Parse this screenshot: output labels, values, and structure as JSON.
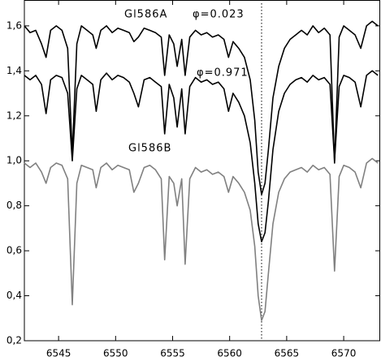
{
  "chart_data": {
    "type": "line",
    "x": [
      6542.0,
      6542.5,
      6543.0,
      6543.5,
      6543.9,
      6544.3,
      6544.8,
      6545.3,
      6545.8,
      6546.2,
      6546.6,
      6547.0,
      6547.5,
      6548.0,
      6548.3,
      6548.7,
      6549.2,
      6549.7,
      6550.2,
      6550.7,
      6551.2,
      6551.6,
      6552.0,
      6552.5,
      6553.0,
      6553.5,
      6554.0,
      6554.3,
      6554.7,
      6555.1,
      6555.4,
      6555.8,
      6556.1,
      6556.5,
      6557.0,
      6557.5,
      6558.0,
      6558.5,
      6559.0,
      6559.5,
      6559.9,
      6560.3,
      6560.8,
      6561.3,
      6561.8,
      6562.2,
      6562.5,
      6562.8,
      6563.1,
      6563.4,
      6563.8,
      6564.3,
      6564.8,
      6565.3,
      6565.8,
      6566.3,
      6566.8,
      6567.3,
      6567.8,
      6568.3,
      6568.8,
      6569.2,
      6569.6,
      6570.0,
      6570.5,
      6571.0,
      6571.5,
      6572.0,
      6572.5,
      6573.0
    ],
    "series": [
      {
        "name": "φ=0.023",
        "color": "#000000",
        "values": [
          1.6,
          1.57,
          1.58,
          1.52,
          1.46,
          1.58,
          1.6,
          1.58,
          1.5,
          1.03,
          1.52,
          1.6,
          1.58,
          1.56,
          1.5,
          1.58,
          1.6,
          1.57,
          1.59,
          1.58,
          1.57,
          1.53,
          1.55,
          1.59,
          1.58,
          1.57,
          1.55,
          1.38,
          1.56,
          1.52,
          1.42,
          1.54,
          1.38,
          1.55,
          1.58,
          1.56,
          1.57,
          1.55,
          1.56,
          1.54,
          1.46,
          1.53,
          1.5,
          1.46,
          1.36,
          1.18,
          0.95,
          0.85,
          0.9,
          1.05,
          1.28,
          1.42,
          1.5,
          1.54,
          1.56,
          1.58,
          1.56,
          1.6,
          1.57,
          1.59,
          1.56,
          0.99,
          1.55,
          1.6,
          1.58,
          1.56,
          1.5,
          1.6,
          1.62,
          1.6
        ]
      },
      {
        "name": "φ=0.971",
        "color": "#000000",
        "values": [
          1.38,
          1.36,
          1.38,
          1.34,
          1.21,
          1.36,
          1.38,
          1.37,
          1.3,
          1.0,
          1.32,
          1.38,
          1.36,
          1.34,
          1.22,
          1.36,
          1.39,
          1.36,
          1.38,
          1.37,
          1.35,
          1.3,
          1.24,
          1.36,
          1.37,
          1.35,
          1.33,
          1.12,
          1.34,
          1.28,
          1.15,
          1.32,
          1.12,
          1.33,
          1.37,
          1.35,
          1.36,
          1.34,
          1.35,
          1.32,
          1.22,
          1.3,
          1.26,
          1.2,
          1.08,
          0.9,
          0.72,
          0.64,
          0.68,
          0.82,
          1.05,
          1.22,
          1.3,
          1.34,
          1.36,
          1.37,
          1.35,
          1.38,
          1.36,
          1.37,
          1.34,
          1.0,
          1.33,
          1.38,
          1.37,
          1.35,
          1.24,
          1.38,
          1.4,
          1.38
        ]
      },
      {
        "name": "Gl586B",
        "color": "#808080",
        "values": [
          0.99,
          0.97,
          0.99,
          0.95,
          0.9,
          0.97,
          0.99,
          0.98,
          0.92,
          0.36,
          0.9,
          0.98,
          0.97,
          0.96,
          0.88,
          0.97,
          0.99,
          0.96,
          0.98,
          0.97,
          0.96,
          0.86,
          0.9,
          0.97,
          0.98,
          0.96,
          0.92,
          0.56,
          0.93,
          0.9,
          0.8,
          0.92,
          0.54,
          0.92,
          0.97,
          0.95,
          0.96,
          0.94,
          0.95,
          0.93,
          0.86,
          0.93,
          0.9,
          0.86,
          0.78,
          0.62,
          0.4,
          0.29,
          0.33,
          0.5,
          0.72,
          0.86,
          0.92,
          0.95,
          0.96,
          0.97,
          0.95,
          0.98,
          0.96,
          0.97,
          0.94,
          0.51,
          0.93,
          0.98,
          0.97,
          0.95,
          0.88,
          0.99,
          1.01,
          0.99
        ]
      }
    ],
    "annotations": [
      "Gl586A"
    ],
    "reference_line_x": 6562.8,
    "xlim": [
      6542,
      6573.2
    ],
    "ylim": [
      0.2,
      1.715
    ],
    "xticks": [
      6545,
      6550,
      6555,
      6560,
      6565,
      6570
    ],
    "yticks": [
      {
        "value": 0.2,
        "label": "0,2"
      },
      {
        "value": 0.4,
        "label": "0,4"
      },
      {
        "value": 0.6,
        "label": "0,6"
      },
      {
        "value": 0.8,
        "label": "0,8"
      },
      {
        "value": 1.0,
        "label": "1,0"
      },
      {
        "value": 1.2,
        "label": "1,2"
      },
      {
        "value": 1.4,
        "label": "1,4"
      },
      {
        "value": 1.6,
        "label": "1,6"
      }
    ],
    "grid": false
  }
}
